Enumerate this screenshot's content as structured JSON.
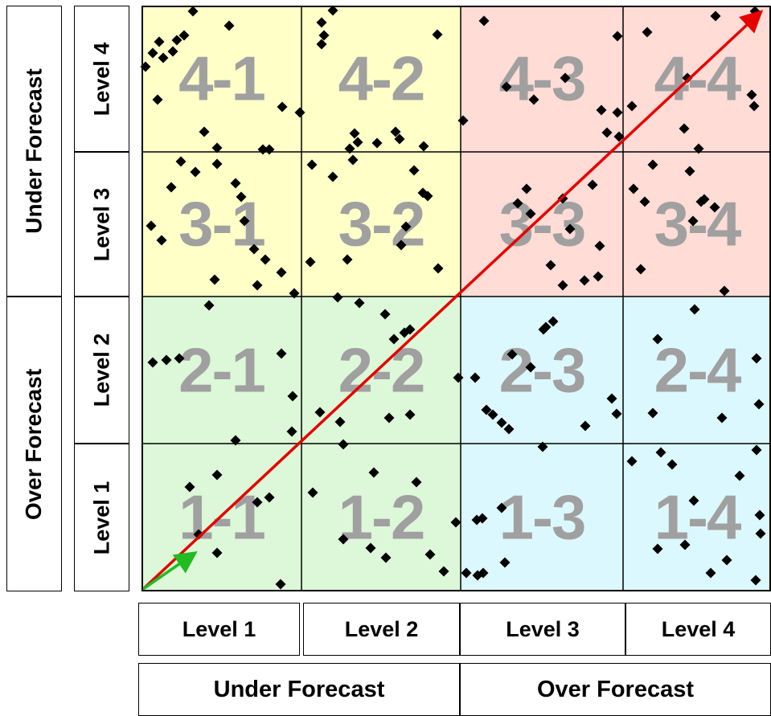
{
  "row_axis": {
    "groups": [
      {
        "label": "Under Forecast"
      },
      {
        "label": "Over Forecast"
      }
    ],
    "levels": [
      {
        "label": "Level 4"
      },
      {
        "label": "Level 3"
      },
      {
        "label": "Level 2"
      },
      {
        "label": "Level 1"
      }
    ]
  },
  "column_axis": {
    "levels": [
      {
        "label": "Level 1"
      },
      {
        "label": "Level 2"
      },
      {
        "label": "Level 3"
      },
      {
        "label": "Level 4"
      }
    ],
    "groups": [
      {
        "label": "Under Forecast"
      },
      {
        "label": "Over Forecast"
      }
    ]
  },
  "grid": {
    "rows": [
      {
        "cells": [
          {
            "code": "4-1",
            "color": "#ffffc8"
          },
          {
            "code": "4-2",
            "color": "#ffffc8"
          },
          {
            "code": "4-3",
            "color": "#ffdcd6"
          },
          {
            "code": "4-4",
            "color": "#ffdcd6"
          }
        ]
      },
      {
        "cells": [
          {
            "code": "3-1",
            "color": "#ffffc8"
          },
          {
            "code": "3-2",
            "color": "#ffffc8"
          },
          {
            "code": "3-3",
            "color": "#ffdcd6"
          },
          {
            "code": "3-4",
            "color": "#ffdcd6"
          }
        ]
      },
      {
        "cells": [
          {
            "code": "2-1",
            "color": "#dcf8d8"
          },
          {
            "code": "2-2",
            "color": "#dcf8d8"
          },
          {
            "code": "2-3",
            "color": "#dcf8ff"
          },
          {
            "code": "2-4",
            "color": "#dcf8ff"
          }
        ]
      },
      {
        "cells": [
          {
            "code": "1-1",
            "color": "#dcf8d8"
          },
          {
            "code": "1-2",
            "color": "#dcf8d8"
          },
          {
            "code": "1-3",
            "color": "#dcf8ff"
          },
          {
            "code": "1-4",
            "color": "#dcf8ff"
          }
        ]
      }
    ]
  },
  "arrows": [
    {
      "name": "diagonal-arrow",
      "color": "#e60000"
    },
    {
      "name": "short-arrow",
      "color": "#22bb22"
    }
  ],
  "markers": {
    "shape": "diamond",
    "color": "#000000"
  }
}
